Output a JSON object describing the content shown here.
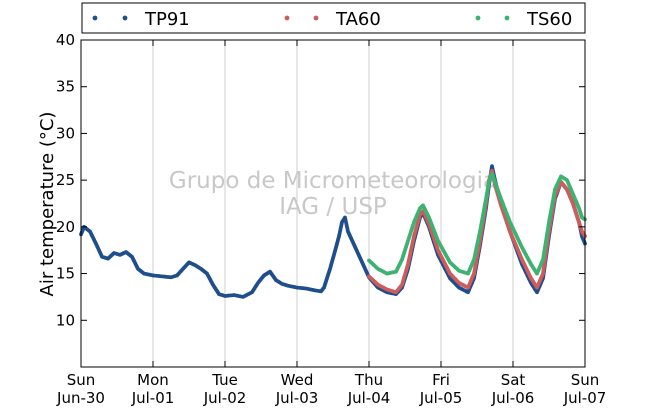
{
  "chart_data": {
    "type": "scatter",
    "title": "",
    "xlabel": "",
    "ylabel": "Air temperature (°C)",
    "ylim": [
      5,
      40
    ],
    "xlim": [
      "2024-06-30T00:00",
      "2024-07-07T00:00"
    ],
    "yticks": [
      10,
      15,
      20,
      25,
      30,
      35,
      40
    ],
    "xticks": [
      {
        "x": "2024-06-30T00:00",
        "day": "Sun",
        "date": "Jun-30"
      },
      {
        "x": "2024-07-01T00:00",
        "day": "Mon",
        "date": "Jul-01"
      },
      {
        "x": "2024-07-02T00:00",
        "day": "Tue",
        "date": "Jul-02"
      },
      {
        "x": "2024-07-03T00:00",
        "day": "Wed",
        "date": "Jul-03"
      },
      {
        "x": "2024-07-04T00:00",
        "day": "Thu",
        "date": "Jul-04"
      },
      {
        "x": "2024-07-05T00:00",
        "day": "Fri",
        "date": "Jul-05"
      },
      {
        "x": "2024-07-06T00:00",
        "day": "Sat",
        "date": "Jul-06"
      },
      {
        "x": "2024-07-07T00:00",
        "day": "Sun",
        "date": "Jul-07"
      }
    ],
    "grid": "vertical",
    "legend_position": "top",
    "watermark": [
      "Grupo de Micrometeorologia",
      "IAG / USP"
    ],
    "series": [
      {
        "name": "TP91",
        "color": "#1f4e8c",
        "points": [
          [
            "2024-06-30T00:00",
            19.2
          ],
          [
            "2024-06-30T01:00",
            20.0
          ],
          [
            "2024-06-30T03:00",
            19.5
          ],
          [
            "2024-06-30T05:00",
            18.2
          ],
          [
            "2024-06-30T07:00",
            16.8
          ],
          [
            "2024-06-30T09:00",
            16.6
          ],
          [
            "2024-06-30T11:00",
            17.2
          ],
          [
            "2024-06-30T13:00",
            17.0
          ],
          [
            "2024-06-30T15:00",
            17.3
          ],
          [
            "2024-06-30T17:00",
            16.8
          ],
          [
            "2024-06-30T19:00",
            15.5
          ],
          [
            "2024-06-30T21:00",
            15.0
          ],
          [
            "2024-07-01T00:00",
            14.8
          ],
          [
            "2024-07-01T03:00",
            14.7
          ],
          [
            "2024-07-01T06:00",
            14.6
          ],
          [
            "2024-07-01T08:00",
            14.8
          ],
          [
            "2024-07-01T10:00",
            15.5
          ],
          [
            "2024-07-01T12:00",
            16.2
          ],
          [
            "2024-07-01T14:00",
            15.9
          ],
          [
            "2024-07-01T16:00",
            15.5
          ],
          [
            "2024-07-01T18:00",
            15.0
          ],
          [
            "2024-07-01T20:00",
            13.8
          ],
          [
            "2024-07-01T22:00",
            12.8
          ],
          [
            "2024-07-02T00:00",
            12.6
          ],
          [
            "2024-07-02T03:00",
            12.7
          ],
          [
            "2024-07-02T06:00",
            12.5
          ],
          [
            "2024-07-02T09:00",
            13.0
          ],
          [
            "2024-07-02T11:00",
            14.0
          ],
          [
            "2024-07-02T13:00",
            14.8
          ],
          [
            "2024-07-02T15:00",
            15.2
          ],
          [
            "2024-07-02T17:00",
            14.3
          ],
          [
            "2024-07-02T19:00",
            13.9
          ],
          [
            "2024-07-02T21:00",
            13.7
          ],
          [
            "2024-07-03T00:00",
            13.5
          ],
          [
            "2024-07-03T03:00",
            13.4
          ],
          [
            "2024-07-03T06:00",
            13.2
          ],
          [
            "2024-07-03T08:00",
            13.1
          ],
          [
            "2024-07-03T09:00",
            13.5
          ],
          [
            "2024-07-03T11:00",
            15.5
          ],
          [
            "2024-07-03T13:00",
            17.8
          ],
          [
            "2024-07-03T14:00",
            19.0
          ],
          [
            "2024-07-03T15:00",
            20.5
          ],
          [
            "2024-07-03T16:00",
            21.0
          ],
          [
            "2024-07-03T17:00",
            19.5
          ],
          [
            "2024-07-04T00:00",
            14.6
          ],
          [
            "2024-07-04T03:00",
            13.5
          ],
          [
            "2024-07-04T06:00",
            13.0
          ],
          [
            "2024-07-04T09:00",
            12.8
          ],
          [
            "2024-07-04T11:00",
            13.5
          ],
          [
            "2024-07-04T13:00",
            15.5
          ],
          [
            "2024-07-04T15:00",
            18.5
          ],
          [
            "2024-07-04T17:00",
            21.0
          ],
          [
            "2024-07-04T18:00",
            21.5
          ],
          [
            "2024-07-04T20:00",
            20.0
          ],
          [
            "2024-07-04T23:00",
            17.0
          ],
          [
            "2024-07-05T03:00",
            14.5
          ],
          [
            "2024-07-05T06:00",
            13.5
          ],
          [
            "2024-07-05T09:00",
            13.0
          ],
          [
            "2024-07-05T11:00",
            14.5
          ],
          [
            "2024-07-05T13:00",
            18.0
          ],
          [
            "2024-07-05T15:00",
            22.0
          ],
          [
            "2024-07-05T16:00",
            24.5
          ],
          [
            "2024-07-05T17:00",
            26.5
          ],
          [
            "2024-07-05T18:00",
            25.0
          ],
          [
            "2024-07-05T20:00",
            22.5
          ],
          [
            "2024-07-05T23:00",
            19.5
          ],
          [
            "2024-07-06T03:00",
            16.0
          ],
          [
            "2024-07-06T06:00",
            14.0
          ],
          [
            "2024-07-06T08:00",
            13.0
          ],
          [
            "2024-07-06T10:00",
            14.5
          ],
          [
            "2024-07-06T12:00",
            19.0
          ],
          [
            "2024-07-06T14:00",
            23.0
          ],
          [
            "2024-07-06T16:00",
            24.8
          ],
          [
            "2024-07-06T18:00",
            24.0
          ],
          [
            "2024-07-06T20:00",
            22.5
          ],
          [
            "2024-07-06T22:00",
            20.5
          ],
          [
            "2024-07-06T23:00",
            19.0
          ],
          [
            "2024-07-07T00:00",
            18.2
          ]
        ]
      },
      {
        "name": "TA60",
        "color": "#cd5c5c",
        "points": [
          [
            "2024-07-04T00:00",
            14.7
          ],
          [
            "2024-07-04T03:00",
            13.8
          ],
          [
            "2024-07-04T06:00",
            13.3
          ],
          [
            "2024-07-04T09:00",
            13.0
          ],
          [
            "2024-07-04T11:00",
            13.8
          ],
          [
            "2024-07-04T13:00",
            16.0
          ],
          [
            "2024-07-04T15:00",
            19.0
          ],
          [
            "2024-07-04T17:00",
            21.3
          ],
          [
            "2024-07-04T18:00",
            21.7
          ],
          [
            "2024-07-04T20:00",
            20.3
          ],
          [
            "2024-07-04T23:00",
            17.5
          ],
          [
            "2024-07-05T03:00",
            15.0
          ],
          [
            "2024-07-05T06:00",
            14.0
          ],
          [
            "2024-07-05T09:00",
            13.5
          ],
          [
            "2024-07-05T11:00",
            15.0
          ],
          [
            "2024-07-05T13:00",
            18.5
          ],
          [
            "2024-07-05T15:00",
            22.5
          ],
          [
            "2024-07-05T16:00",
            25.0
          ],
          [
            "2024-07-05T17:00",
            26.0
          ],
          [
            "2024-07-05T18:00",
            24.5
          ],
          [
            "2024-07-05T20:00",
            22.3
          ],
          [
            "2024-07-05T23:00",
            19.5
          ],
          [
            "2024-07-06T03:00",
            16.5
          ],
          [
            "2024-07-06T06:00",
            14.5
          ],
          [
            "2024-07-06T08:00",
            13.5
          ],
          [
            "2024-07-06T10:00",
            15.0
          ],
          [
            "2024-07-06T12:00",
            19.5
          ],
          [
            "2024-07-06T14:00",
            23.3
          ],
          [
            "2024-07-06T16:00",
            24.8
          ],
          [
            "2024-07-06T18:00",
            24.0
          ],
          [
            "2024-07-06T20:00",
            22.5
          ],
          [
            "2024-07-06T22:00",
            20.5
          ],
          [
            "2024-07-06T23:00",
            19.5
          ],
          [
            "2024-07-07T00:00",
            19.0
          ]
        ]
      },
      {
        "name": "TS60",
        "color": "#3cb371",
        "points": [
          [
            "2024-07-04T00:00",
            16.4
          ],
          [
            "2024-07-04T03:00",
            15.5
          ],
          [
            "2024-07-04T06:00",
            15.0
          ],
          [
            "2024-07-04T09:00",
            15.2
          ],
          [
            "2024-07-04T11:00",
            16.5
          ],
          [
            "2024-07-04T13:00",
            18.5
          ],
          [
            "2024-07-04T15:00",
            20.5
          ],
          [
            "2024-07-04T17:00",
            22.0
          ],
          [
            "2024-07-04T18:00",
            22.3
          ],
          [
            "2024-07-04T20:00",
            21.0
          ],
          [
            "2024-07-04T23:00",
            18.5
          ],
          [
            "2024-07-05T03:00",
            16.2
          ],
          [
            "2024-07-05T06:00",
            15.3
          ],
          [
            "2024-07-05T09:00",
            15.0
          ],
          [
            "2024-07-05T11:00",
            16.5
          ],
          [
            "2024-07-05T13:00",
            19.5
          ],
          [
            "2024-07-05T15:00",
            23.0
          ],
          [
            "2024-07-05T16:00",
            24.8
          ],
          [
            "2024-07-05T17:00",
            25.7
          ],
          [
            "2024-07-05T18:00",
            24.8
          ],
          [
            "2024-07-05T20:00",
            23.0
          ],
          [
            "2024-07-05T23:00",
            20.5
          ],
          [
            "2024-07-06T03:00",
            17.8
          ],
          [
            "2024-07-06T06:00",
            16.0
          ],
          [
            "2024-07-06T08:00",
            15.0
          ],
          [
            "2024-07-06T10:00",
            16.5
          ],
          [
            "2024-07-06T12:00",
            20.5
          ],
          [
            "2024-07-06T14:00",
            24.0
          ],
          [
            "2024-07-06T16:00",
            25.4
          ],
          [
            "2024-07-06T18:00",
            25.0
          ],
          [
            "2024-07-06T20:00",
            23.5
          ],
          [
            "2024-07-06T22:00",
            22.0
          ],
          [
            "2024-07-06T23:00",
            21.0
          ],
          [
            "2024-07-07T00:00",
            20.8
          ]
        ]
      }
    ]
  }
}
